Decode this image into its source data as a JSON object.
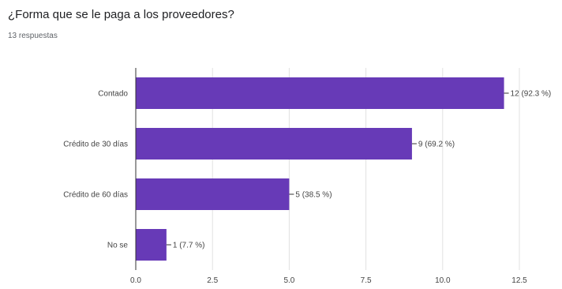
{
  "form": {
    "question": "¿Forma que se le paga a los proveedores?",
    "responses": "13 respuestas"
  },
  "colors": {
    "bar": "#673ab7",
    "grid": "#e0e0e0",
    "axis": "#333333",
    "label": "#444444"
  },
  "chart_data": {
    "type": "bar",
    "orientation": "horizontal",
    "categories": [
      "Contado",
      "Crédito de 30 días",
      "Crédito de 60 días",
      "No se"
    ],
    "values": [
      12,
      9,
      5,
      1
    ],
    "data_labels": [
      "12 (92.3 %)",
      "9 (69.2 %)",
      "5 (38.5 %)",
      "1 (7.7 %)"
    ],
    "xticks": [
      0,
      2.5,
      5,
      7.5,
      10,
      12.5
    ],
    "xtick_labels": [
      "0.0",
      "2.5",
      "5.0",
      "7.5",
      "10.0",
      "12.5"
    ],
    "xlim": [
      0,
      12.5
    ],
    "grid": true,
    "title": "¿Forma que se le paga a los proveedores?",
    "subtitle": "13 respuestas"
  }
}
